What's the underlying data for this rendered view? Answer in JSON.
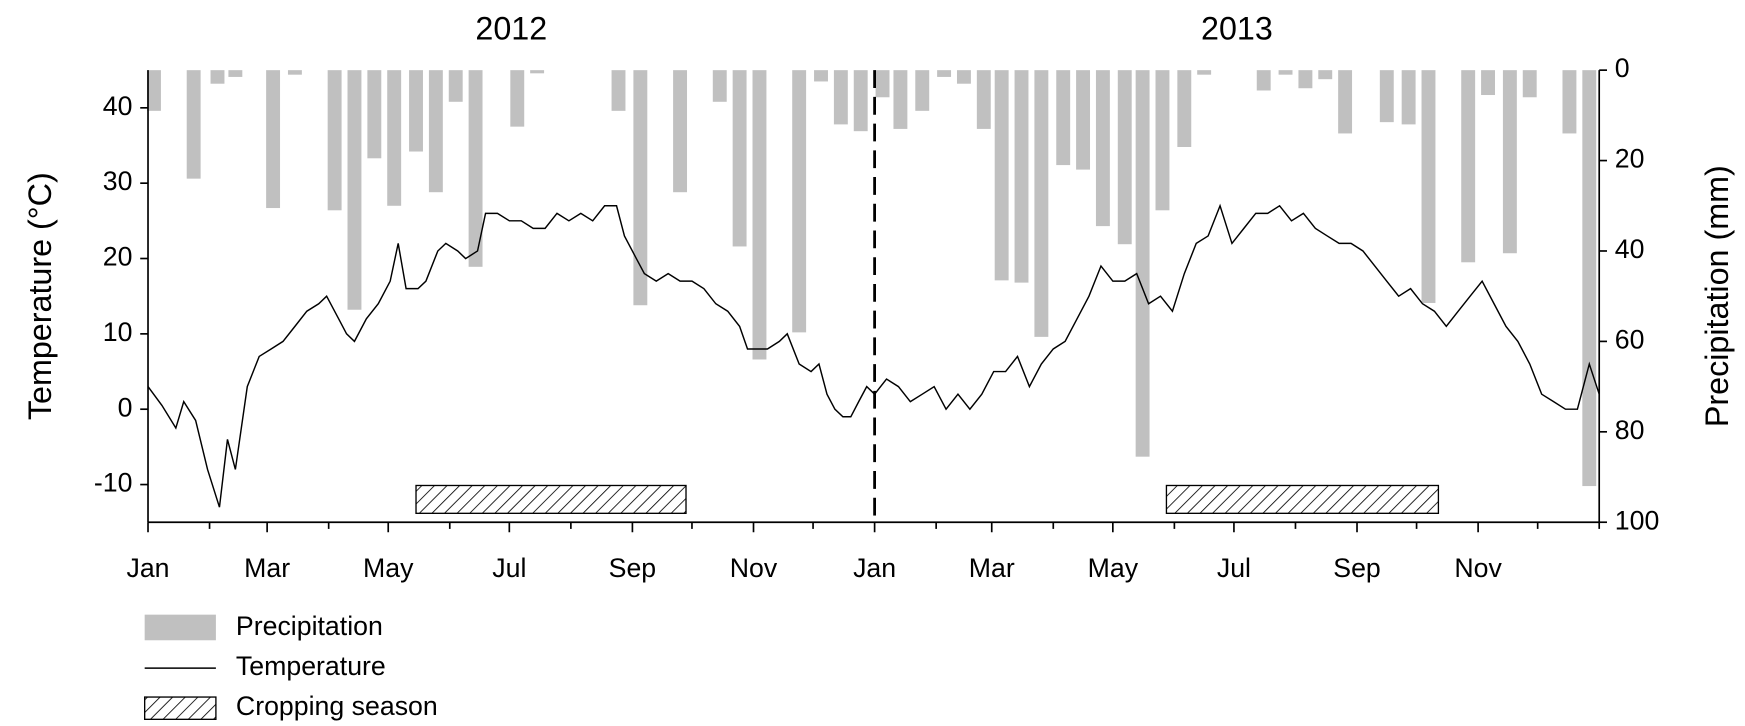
{
  "chart_data": {
    "type": "combo",
    "years": [
      "2012",
      "2013"
    ],
    "y_label": "Temperature (°C)",
    "y2_label": "Precipitation (mm)",
    "xlim": [
      0,
      731
    ],
    "xticks": [
      {
        "value": 0,
        "label": "Jan"
      },
      {
        "value": 60,
        "label": "Mar"
      },
      {
        "value": 121,
        "label": "May"
      },
      {
        "value": 182,
        "label": "Jul"
      },
      {
        "value": 244,
        "label": "Sep"
      },
      {
        "value": 305,
        "label": "Nov"
      },
      {
        "value": 366,
        "label": "Jan"
      },
      {
        "value": 425,
        "label": "Mar"
      },
      {
        "value": 486,
        "label": "May"
      },
      {
        "value": 547,
        "label": "Jul"
      },
      {
        "value": 609,
        "label": "Sep"
      },
      {
        "value": 670,
        "label": "Nov"
      }
    ],
    "xminorticks": [
      31,
      91,
      152,
      213,
      274,
      335,
      397,
      456,
      517,
      578,
      639,
      700,
      731
    ],
    "ylim": [
      -15,
      45
    ],
    "yticks": [
      -10,
      0,
      10,
      20,
      30,
      40
    ],
    "y2lim": [
      0,
      100
    ],
    "y2ticks": [
      0,
      20,
      40,
      60,
      80,
      100
    ],
    "y2_inverted": true,
    "divider_x": 366,
    "series": [
      {
        "name": "Precipitation",
        "type": "bar",
        "axis": "y2",
        "color": "#c0c0c0",
        "x": [
          3,
          23,
          35,
          44,
          63,
          74,
          94,
          104,
          114,
          124,
          135,
          145,
          155,
          165,
          186,
          196,
          237,
          248,
          268,
          288,
          298,
          308,
          328,
          339,
          349,
          359,
          370,
          379,
          390,
          401,
          411,
          421,
          430,
          440,
          450,
          461,
          471,
          481,
          492,
          501,
          511,
          522,
          532,
          562,
          573,
          583,
          593,
          603,
          624,
          635,
          645,
          665,
          675,
          686,
          696,
          716,
          726
        ],
        "values": [
          9,
          24,
          3,
          1.5,
          30.5,
          1,
          31,
          53,
          19.5,
          30,
          18,
          27,
          7,
          43.5,
          12.5,
          0.7,
          9,
          52,
          27,
          7,
          39,
          64,
          58,
          2.5,
          12,
          13.5,
          6,
          13,
          9,
          1.5,
          3,
          13,
          46.5,
          47,
          59,
          21,
          22,
          34.5,
          38.5,
          85.5,
          31,
          17,
          1,
          4.5,
          1,
          4,
          2,
          14,
          11.5,
          12,
          51.5,
          42.5,
          5.5,
          40.5,
          6,
          14,
          92
        ]
      },
      {
        "name": "Temperature",
        "type": "line",
        "color": "#000000",
        "x": [
          0,
          7,
          14,
          18,
          24,
          30,
          36,
          40,
          44,
          50,
          56,
          62,
          68,
          74,
          80,
          86,
          90,
          96,
          100,
          104,
          110,
          116,
          122,
          126,
          130,
          136,
          140,
          146,
          150,
          156,
          160,
          166,
          170,
          176,
          182,
          188,
          194,
          200,
          206,
          212,
          218,
          224,
          230,
          236,
          240,
          246,
          250,
          256,
          262,
          268,
          274,
          280,
          286,
          292,
          298,
          302,
          306,
          312,
          318,
          322,
          328,
          334,
          338,
          342,
          346,
          350,
          354,
          358,
          362,
          366,
          372,
          378,
          384,
          390,
          396,
          402,
          408,
          414,
          420,
          426,
          432,
          438,
          444,
          450,
          456,
          462,
          468,
          474,
          480,
          486,
          492,
          498,
          504,
          510,
          516,
          522,
          528,
          534,
          540,
          546,
          552,
          558,
          564,
          570,
          576,
          582,
          588,
          594,
          600,
          606,
          612,
          618,
          624,
          630,
          636,
          642,
          648,
          654,
          660,
          666,
          672,
          678,
          684,
          690,
          696,
          702,
          708,
          714,
          720,
          726,
          731
        ],
        "values": [
          3,
          0.5,
          -2.5,
          1,
          -1.5,
          -8,
          -13,
          -4,
          -8,
          3,
          7,
          8,
          9,
          11,
          13,
          14,
          15,
          12,
          10,
          9,
          12,
          14,
          17,
          22,
          16,
          16,
          17,
          21,
          22,
          21,
          20,
          21,
          26,
          26,
          25,
          25,
          24,
          24,
          26,
          25,
          26,
          25,
          27,
          27,
          23,
          20,
          18,
          17,
          18,
          17,
          17,
          16,
          14,
          13,
          11,
          8,
          8,
          8,
          9,
          10,
          6,
          5,
          6,
          2,
          0,
          -1,
          -1,
          1,
          3,
          2,
          4,
          3,
          1,
          2,
          3,
          0,
          2,
          0,
          2,
          5,
          5,
          7,
          3,
          6,
          8,
          9,
          12,
          15,
          19,
          17,
          17,
          18,
          14,
          15,
          13,
          18,
          22,
          23,
          27,
          22,
          24,
          26,
          26,
          27,
          25,
          26,
          24,
          23,
          22,
          22,
          21,
          19,
          17,
          15,
          16,
          14,
          13,
          11,
          13,
          15,
          17,
          14,
          11,
          9,
          6,
          2,
          1,
          0,
          0,
          6,
          2
        ]
      }
    ],
    "cropping_season": {
      "name": "Cropping season",
      "spans": [
        [
          135,
          271
        ],
        [
          513,
          650
        ]
      ]
    }
  }
}
